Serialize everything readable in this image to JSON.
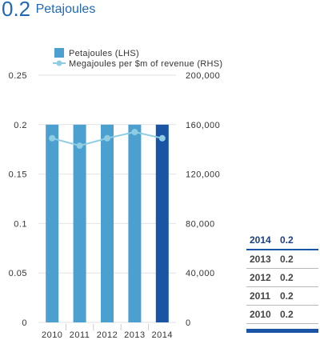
{
  "headline": {
    "value": "0.2",
    "unit": "Petajoules"
  },
  "colors": {
    "bar": "#4ba0cf",
    "bar_highlight": "#1a55a5",
    "line": "#8fcde3",
    "grid": "#e2e2e2",
    "headline": "#1f69b4"
  },
  "chart_data": {
    "type": "bar",
    "categories": [
      "2010",
      "2011",
      "2012",
      "2013",
      "2014"
    ],
    "highlight_category": "2014",
    "series": [
      {
        "name": "Petajoules (LHS)",
        "type": "bar",
        "axis": "left",
        "values": [
          0.2,
          0.2,
          0.2,
          0.2,
          0.2
        ]
      },
      {
        "name": "Megajoules per $m of revenue (RHS)",
        "type": "line",
        "axis": "right",
        "values": [
          149000,
          143000,
          149000,
          154000,
          149000
        ]
      }
    ],
    "left_axis": {
      "ylim": [
        0,
        0.25
      ],
      "ticks": [
        "0",
        "0.05",
        "0.1",
        "0.15",
        "0.2",
        "0.25"
      ]
    },
    "right_axis": {
      "ylim": [
        0,
        200000
      ],
      "ticks": [
        "0",
        "40,000",
        "80,000",
        "120,000",
        "160,000",
        "200,000"
      ]
    },
    "grid": true,
    "legend_position": "top-left"
  },
  "summary_table": [
    {
      "year": "2014",
      "value": "0.2"
    },
    {
      "year": "2013",
      "value": "0.2"
    },
    {
      "year": "2012",
      "value": "0.2"
    },
    {
      "year": "2011",
      "value": "0.2"
    },
    {
      "year": "2010",
      "value": "0.2"
    }
  ]
}
